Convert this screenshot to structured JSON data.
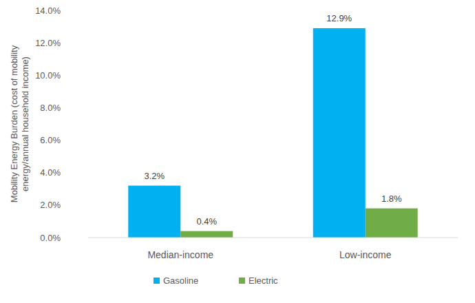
{
  "chart_data": {
    "type": "bar",
    "y_label": "Mobility Energy Burden (cost of mobility energy/annual household income)",
    "categories": [
      "Median-income",
      "Low-income"
    ],
    "series": [
      {
        "name": "Gasoline",
        "color": "#00B0F0",
        "values": [
          3.2,
          12.9
        ],
        "value_labels": [
          "3.2%",
          "12.9%"
        ]
      },
      {
        "name": "Electric",
        "color": "#70AD47",
        "values": [
          0.4,
          1.8
        ],
        "value_labels": [
          "0.4%",
          "1.8%"
        ]
      }
    ],
    "ylim": [
      0,
      14
    ],
    "yticks": [
      {
        "value": 0,
        "label": "0.0%"
      },
      {
        "value": 2,
        "label": "2.0%"
      },
      {
        "value": 4,
        "label": "4.0%"
      },
      {
        "value": 6,
        "label": "6.0%"
      },
      {
        "value": 8,
        "label": "8.0%"
      },
      {
        "value": 10,
        "label": "10.0%"
      },
      {
        "value": 12,
        "label": "12.0%"
      },
      {
        "value": 14,
        "label": "14.0%"
      }
    ],
    "grid": false,
    "legend": "bottom",
    "data_labels": true
  }
}
